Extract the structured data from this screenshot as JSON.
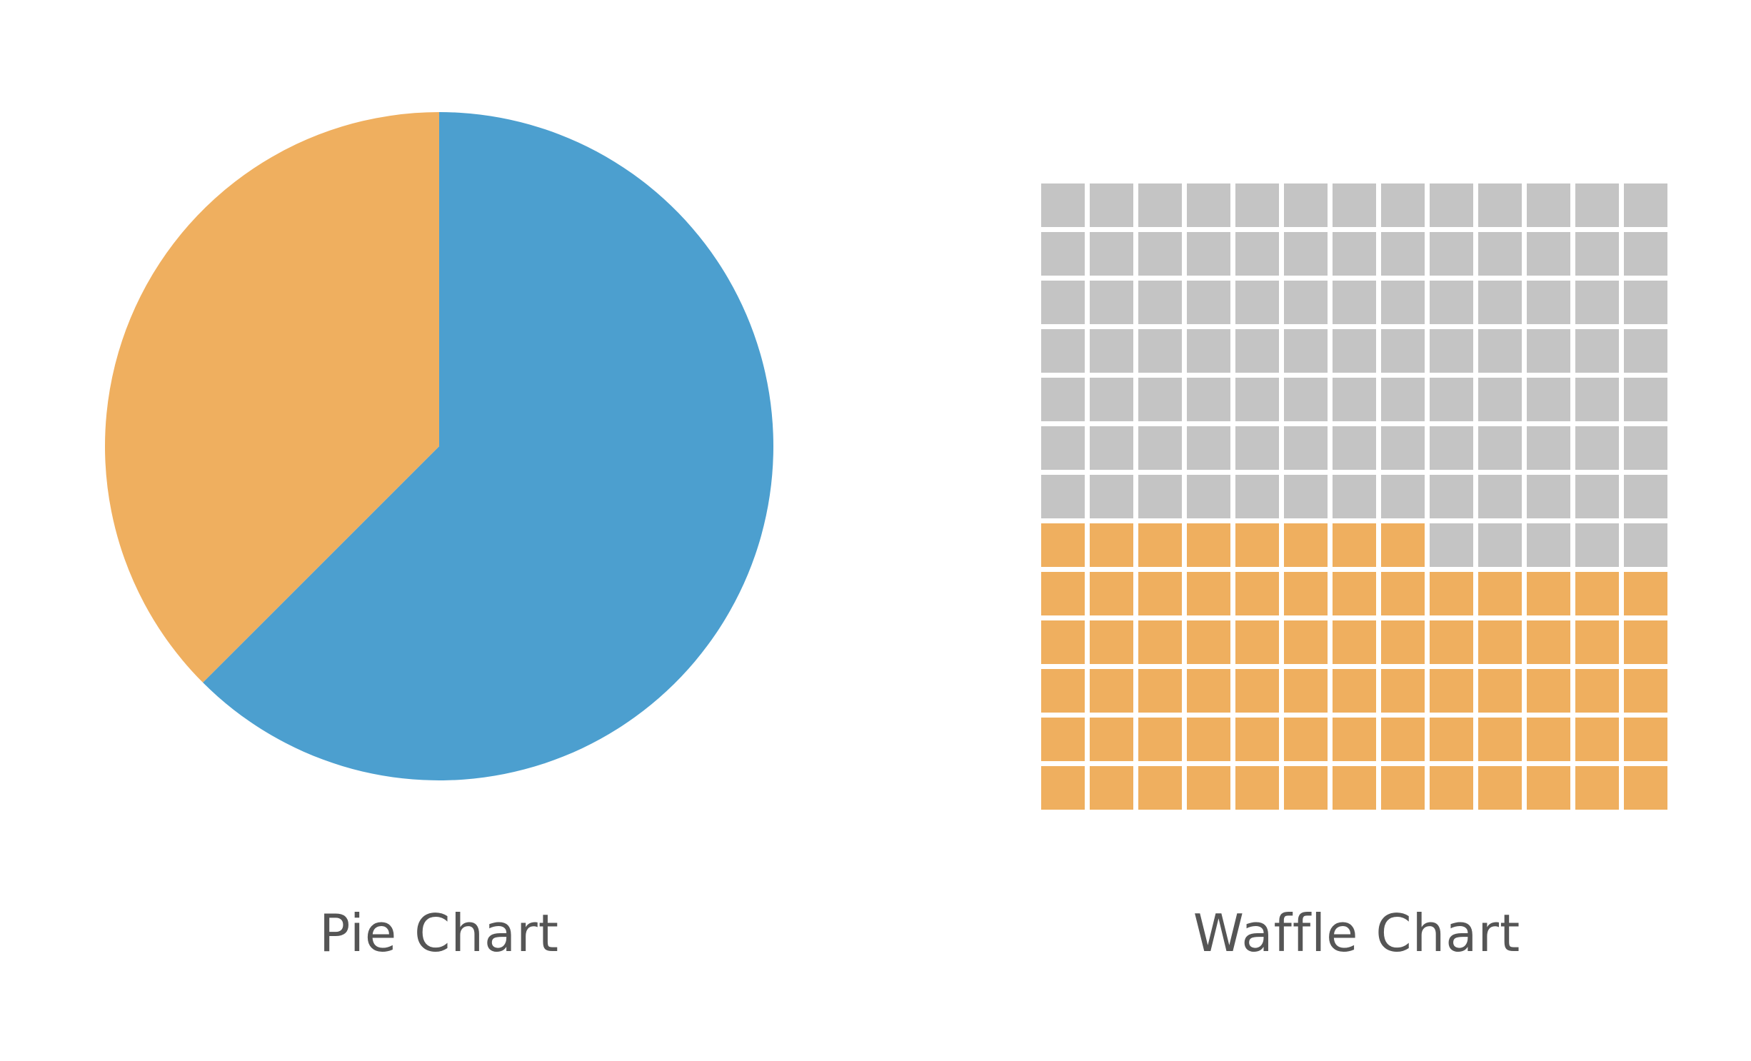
{
  "chart_data": [
    {
      "type": "pie",
      "caption": "Pie Chart",
      "slices": [
        {
          "value": 62.5,
          "color": "#4c9fcf"
        },
        {
          "value": 37.5,
          "color": "#efaf5f"
        }
      ],
      "start_angle_deg": 0,
      "direction": "clockwise"
    },
    {
      "type": "waffle",
      "caption": "Waffle Chart",
      "rows": 13,
      "cols": 13,
      "fill_order": "bottom-up, left-to-right",
      "cells": [
        {
          "count": 73,
          "color": "#efaf5f"
        },
        {
          "count": 96,
          "color": "#c4c4c4"
        }
      ]
    }
  ]
}
